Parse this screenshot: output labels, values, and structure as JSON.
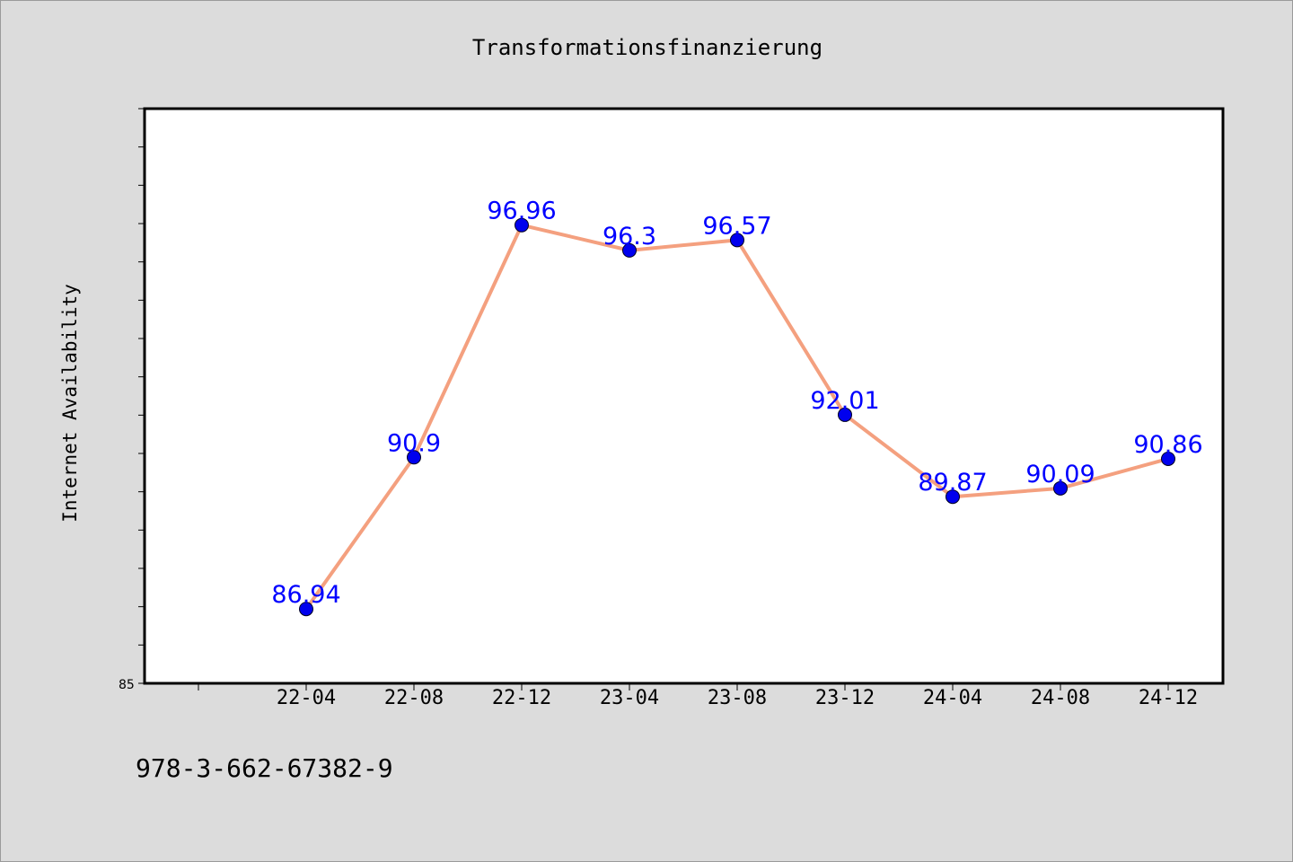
{
  "footer_text": "978-3-662-67382-9",
  "chart_data": {
    "type": "line",
    "title": "Transformationsfinanzierung",
    "ylabel": "Internet Availability",
    "xlabel": "",
    "categories": [
      "22-04",
      "22-08",
      "22-12",
      "23-04",
      "23-08",
      "23-12",
      "24-04",
      "24-08",
      "24-12"
    ],
    "series": [
      {
        "values": [
          86.94,
          90.9,
          96.96,
          96.3,
          96.57,
          92.01,
          89.87,
          90.09,
          90.86
        ],
        "data_labels": [
          "86.94",
          "90.9",
          "96.96",
          "96.3",
          "96.57",
          "92.01",
          "89.87",
          "90.09",
          "90.86"
        ]
      }
    ],
    "ylim": [
      85,
      100
    ],
    "y_tick_labels": [
      "85"
    ],
    "grid": false,
    "legend": "none",
    "colors": {
      "line": "#f4a07f",
      "marker": "#0000ee",
      "data_label": "#0000ff",
      "plot_background": "#ffffff",
      "page_background": "#dcdcdc"
    }
  }
}
